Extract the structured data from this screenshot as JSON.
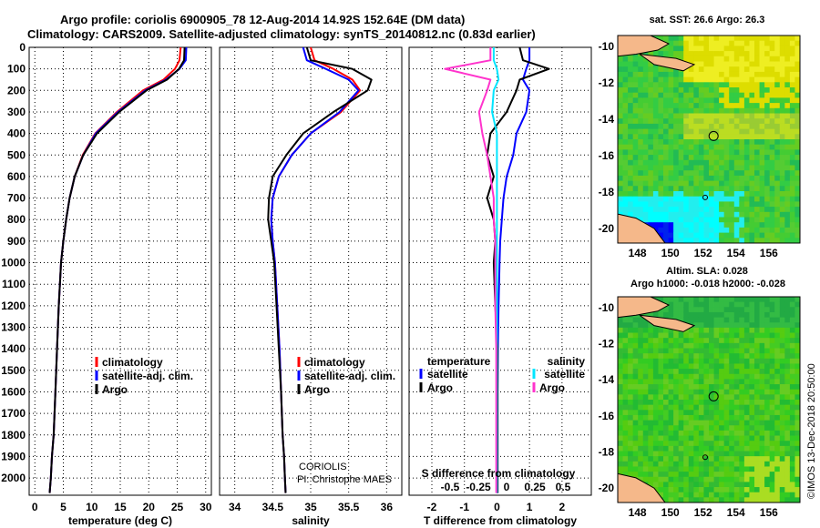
{
  "header": {
    "line1": "Argo profile: coriolis 6900905_78 12-Aug-2014 14.92S 152.64E (DM data)",
    "line2": "Climatology: CARS2009. Satellite-adjusted climatology: synTS_20140812.nc (0.83d earlier)"
  },
  "credit": {
    "institution": "CORIOLIS",
    "pi": "PI: Christophe MAES",
    "imos": "©IMOS 13-Dec-2018 20:50:00"
  },
  "colors": {
    "climatology": "#ff0000",
    "satellite": "#0000ff",
    "argo": "#000000",
    "salinity_satellite": "#00e5ff",
    "salinity_argo": "#ff33cc"
  },
  "chart_data": [
    {
      "type": "line",
      "panel": "temperature",
      "xlabel": "temperature (deg C)",
      "ylim": [
        2080,
        0
      ],
      "xlim": [
        -1,
        31
      ],
      "xticks": [
        0,
        5,
        10,
        15,
        20,
        25,
        30
      ],
      "yticks": [
        0,
        100,
        200,
        300,
        400,
        500,
        600,
        700,
        800,
        900,
        1000,
        1100,
        1200,
        1300,
        1400,
        1500,
        1600,
        1700,
        1800,
        1900,
        2000
      ],
      "grid": true,
      "legend_position": "bottom-left",
      "series": [
        {
          "name": "climatology",
          "color": "#ff0000",
          "x": [
            25.6,
            25.4,
            24.6,
            22.6,
            19.0,
            14.4,
            10.6,
            8.4,
            7.0,
            6.1,
            5.5,
            5.0,
            4.6,
            4.2,
            3.9,
            3.6,
            3.3,
            3.0,
            2.8,
            2.6
          ],
          "y": [
            0,
            60,
            100,
            150,
            200,
            300,
            400,
            500,
            600,
            700,
            800,
            900,
            1000,
            1200,
            1400,
            1600,
            1800,
            1900,
            2000,
            2070
          ]
        },
        {
          "name": "satellite-adj. clim.",
          "color": "#0000ff",
          "x": [
            26.6,
            26.5,
            25.4,
            23.0,
            19.4,
            14.6,
            10.7,
            8.5,
            7.0,
            6.1,
            5.5,
            5.0,
            4.6,
            4.2,
            3.9,
            3.6,
            3.3,
            3.0,
            2.8,
            2.6
          ],
          "y": [
            0,
            60,
            100,
            150,
            200,
            300,
            400,
            500,
            600,
            700,
            800,
            900,
            1000,
            1200,
            1400,
            1600,
            1800,
            1900,
            2000,
            2070
          ]
        },
        {
          "name": "Argo",
          "color": "#000000",
          "x": [
            26.3,
            26.2,
            25.3,
            23.2,
            19.6,
            14.8,
            10.9,
            8.5,
            7.0,
            6.1,
            5.5,
            5.0,
            4.6,
            4.2,
            3.9,
            3.6,
            3.3,
            3.0,
            2.8,
            2.6
          ],
          "y": [
            0,
            60,
            100,
            150,
            200,
            300,
            400,
            500,
            600,
            700,
            800,
            900,
            1000,
            1200,
            1400,
            1600,
            1800,
            1900,
            2000,
            2070
          ]
        }
      ],
      "legend": [
        "climatology",
        "satellite-adj. clim.",
        "Argo"
      ]
    },
    {
      "type": "line",
      "panel": "salinity",
      "xlabel": "salinity",
      "ylim": [
        2080,
        0
      ],
      "xlim": [
        33.8,
        36.2
      ],
      "xticks": [
        34,
        34.5,
        35,
        35.5,
        36
      ],
      "xtick_labels": [
        "34",
        "34.5",
        "35",
        "35.5",
        "36"
      ],
      "grid": true,
      "legend_position": "bottom-right",
      "series": [
        {
          "name": "climatology",
          "color": "#ff0000",
          "x": [
            35.0,
            35.05,
            35.3,
            35.55,
            35.65,
            35.4,
            35.0,
            34.75,
            34.58,
            34.5,
            34.48,
            34.5,
            34.53,
            34.56,
            34.59,
            34.61,
            34.63,
            34.65,
            34.66,
            34.67
          ],
          "y": [
            0,
            60,
            100,
            150,
            200,
            300,
            400,
            500,
            600,
            700,
            800,
            900,
            1000,
            1200,
            1400,
            1600,
            1800,
            1900,
            2000,
            2070
          ]
        },
        {
          "name": "satellite-adj. clim.",
          "color": "#0000ff",
          "x": [
            34.9,
            34.95,
            35.2,
            35.5,
            35.63,
            35.38,
            35.0,
            34.75,
            34.58,
            34.5,
            34.48,
            34.5,
            34.53,
            34.56,
            34.59,
            34.61,
            34.63,
            34.65,
            34.66,
            34.67
          ],
          "y": [
            0,
            60,
            100,
            150,
            200,
            300,
            400,
            500,
            600,
            700,
            800,
            900,
            1000,
            1200,
            1400,
            1600,
            1800,
            1900,
            2000,
            2070
          ]
        },
        {
          "name": "Argo",
          "color": "#000000",
          "x": [
            34.95,
            35.0,
            35.55,
            35.8,
            35.75,
            35.3,
            34.9,
            34.68,
            34.5,
            34.45,
            34.44,
            34.48,
            34.52,
            34.55,
            34.58,
            34.61,
            34.63,
            34.65,
            34.66,
            34.67
          ],
          "y": [
            0,
            60,
            100,
            150,
            200,
            300,
            400,
            500,
            600,
            700,
            800,
            900,
            1000,
            1200,
            1400,
            1600,
            1800,
            1900,
            2000,
            2070
          ]
        }
      ],
      "legend": [
        "climatology",
        "satellite-adj. clim.",
        "Argo"
      ]
    },
    {
      "type": "line",
      "panel": "difference",
      "xlabel": "T difference from climatology",
      "xlim": [
        -2.7,
        2.9
      ],
      "xticks": [
        -2,
        -1,
        0,
        1,
        2
      ],
      "s_axis_title": "S difference from climatology",
      "s_ticks": [
        -0.5,
        -0.25,
        0,
        0.25,
        0.5
      ],
      "s_tick_labels": [
        "-0.5",
        "-0.25",
        "0",
        "0.25",
        "0.5"
      ],
      "ylim": [
        2080,
        0
      ],
      "grid": true,
      "legend_groups": [
        {
          "title": "temperature",
          "entries": [
            "satellite",
            "Argo"
          ]
        },
        {
          "title": "salinity",
          "entries": [
            "satellite",
            "Argo"
          ]
        }
      ],
      "series": [
        {
          "name": "temperature satellite",
          "color": "#0000ff",
          "x": [
            1.0,
            1.0,
            0.9,
            0.8,
            1.0,
            0.9,
            0.6,
            0.5,
            0.3,
            0.2,
            0.15,
            0.1,
            0.08,
            0.05,
            0.03,
            0.02,
            0.02,
            0.02,
            0.02,
            0.02
          ],
          "y": [
            0,
            60,
            100,
            150,
            200,
            300,
            400,
            500,
            600,
            700,
            800,
            900,
            1000,
            1200,
            1400,
            1600,
            1800,
            1900,
            2000,
            2070
          ]
        },
        {
          "name": "temperature Argo",
          "color": "#000000",
          "x": [
            0.7,
            0.8,
            1.6,
            0.7,
            0.6,
            0.3,
            -0.2,
            -0.3,
            -0.1,
            -0.3,
            -0.1,
            -0.05,
            -0.1,
            -0.05,
            0.02,
            0.02,
            0.02,
            0.02,
            0.02,
            0.02
          ],
          "y": [
            0,
            60,
            100,
            150,
            200,
            300,
            400,
            500,
            600,
            700,
            800,
            900,
            1000,
            1200,
            1400,
            1600,
            1800,
            1900,
            2000,
            2070
          ]
        },
        {
          "name": "salinity satellite",
          "color": "#00e5ff",
          "x": [
            -0.1,
            -0.1,
            0.0,
            0.05,
            -0.1,
            -0.15,
            0.0,
            0.0,
            0.0,
            0.0,
            0.0,
            0.0,
            0.0,
            0.0,
            0.0,
            0.0,
            0.0,
            0.0,
            0.0,
            0.0
          ],
          "y": [
            0,
            60,
            100,
            150,
            200,
            300,
            400,
            500,
            600,
            700,
            800,
            900,
            1000,
            1200,
            1400,
            1600,
            1800,
            1900,
            2000,
            2070
          ]
        },
        {
          "name": "salinity Argo",
          "color": "#ff33cc",
          "x": [
            -0.2,
            -0.2,
            -1.6,
            -0.2,
            -0.3,
            -0.55,
            -0.45,
            -0.3,
            -0.2,
            -0.1,
            -0.1,
            -0.05,
            -0.05,
            -0.05,
            -0.02,
            -0.02,
            -0.02,
            -0.02,
            -0.02,
            -0.02
          ],
          "y": [
            0,
            60,
            100,
            150,
            200,
            300,
            400,
            500,
            600,
            700,
            800,
            900,
            1000,
            1200,
            1400,
            1600,
            1800,
            1900,
            2000,
            2070
          ]
        }
      ]
    },
    {
      "type": "heatmap",
      "panel": "sst-map",
      "title": "sat. SST: 26.6 Argo: 26.3",
      "xlim": [
        146.8,
        157.9
      ],
      "ylim": [
        -20.8,
        -9.4
      ],
      "xticks": [
        148,
        150,
        152,
        154,
        156
      ],
      "yticks": [
        -10,
        -12,
        -14,
        -16,
        -18,
        -20
      ],
      "argo_position": [
        152.64,
        -14.92
      ]
    },
    {
      "type": "heatmap",
      "panel": "sla-map",
      "title": "Altim. SLA: 0.028",
      "subtitle": "Argo h1000: -0.018 h2000: -0.028",
      "xlim": [
        146.8,
        157.9
      ],
      "ylim": [
        -20.8,
        -9.4
      ],
      "xticks": [
        148,
        150,
        152,
        154,
        156
      ],
      "yticks": [
        -10,
        -12,
        -14,
        -16,
        -18,
        -20
      ],
      "argo_position": [
        152.64,
        -14.92
      ]
    }
  ]
}
